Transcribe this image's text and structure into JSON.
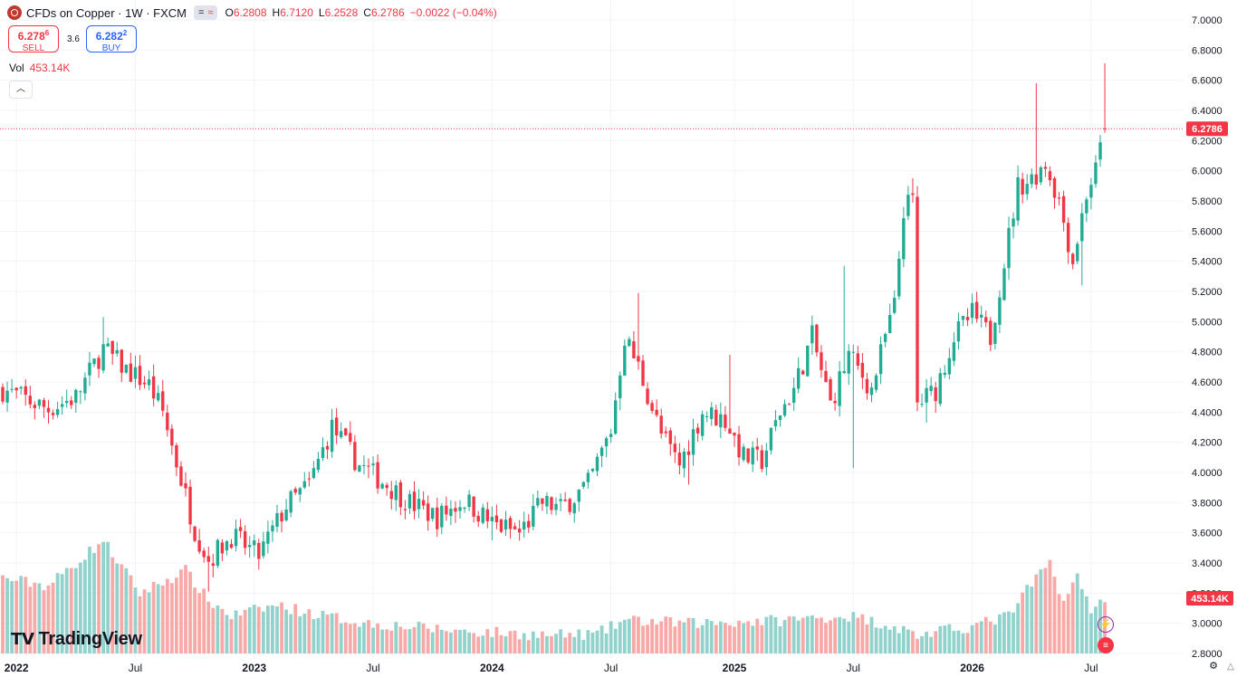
{
  "header": {
    "title": "CFDs on Copper · 1W · FXCM",
    "badge_icon": "equals-icon",
    "badge_icon2": "approx-icon",
    "open": "6.2808",
    "high": "6.7120",
    "low": "6.2528",
    "close": "6.2786",
    "change": "−0.0022 (−0.04%)"
  },
  "trade": {
    "sell_price": "6.278",
    "sell_sup": "6",
    "sell_label": "SELL",
    "spread": "3.6",
    "buy_price": "6.282",
    "buy_sup": "2",
    "buy_label": "BUY"
  },
  "volume": {
    "label": "Vol",
    "value": "453.14K"
  },
  "logo": {
    "text": "TradingView"
  },
  "colors": {
    "up": "#22ab94",
    "down": "#f23645",
    "up_vol": "#92d2cc",
    "down_vol": "#f7a9a7",
    "grid": "#f0f3fa"
  },
  "chart_data": {
    "type": "candlestick",
    "interval": "1W",
    "price_axis": {
      "ticks": [
        "2.8000",
        "3.0000",
        "3.2000",
        "3.4000",
        "3.6000",
        "3.8000",
        "4.0000",
        "4.2000",
        "4.4000",
        "4.6000",
        "4.8000",
        "5.0000",
        "5.2000",
        "5.4000",
        "5.6000",
        "5.8000",
        "6.0000",
        "6.2000",
        "6.4000",
        "6.6000",
        "6.8000",
        "7.0000"
      ],
      "range": [
        2.72,
        7.06
      ],
      "last_price_label": "6.2786",
      "last_price": 6.2786
    },
    "time_axis": {
      "labels": [
        "2022",
        "Jul",
        "2023",
        "Jul",
        "2024",
        "Jul",
        "2025",
        "Jul",
        "2026",
        "Jul"
      ]
    },
    "volume_label": "453.14K",
    "anchors": [
      [
        0,
        4.55
      ],
      [
        10,
        4.42
      ],
      [
        16,
        4.5
      ],
      [
        22,
        4.82
      ],
      [
        27,
        4.68
      ],
      [
        32,
        4.58
      ],
      [
        35,
        4.4
      ],
      [
        42,
        3.62
      ],
      [
        45,
        3.42
      ],
      [
        50,
        3.58
      ],
      [
        56,
        3.45
      ],
      [
        62,
        3.78
      ],
      [
        67,
        3.92
      ],
      [
        72,
        4.3
      ],
      [
        78,
        4.05
      ],
      [
        84,
        3.92
      ],
      [
        89,
        3.8
      ],
      [
        95,
        3.7
      ],
      [
        101,
        3.82
      ],
      [
        107,
        3.66
      ],
      [
        113,
        3.6
      ],
      [
        118,
        3.8
      ],
      [
        122,
        3.76
      ],
      [
        128,
        3.92
      ],
      [
        133,
        4.28
      ],
      [
        136,
        4.9
      ],
      [
        139,
        4.7
      ],
      [
        144,
        4.25
      ],
      [
        148,
        4.05
      ],
      [
        153,
        4.4
      ],
      [
        158,
        4.35
      ],
      [
        162,
        4.1
      ],
      [
        166,
        4.08
      ],
      [
        170,
        4.4
      ],
      [
        173,
        4.55
      ],
      [
        177,
        4.9
      ],
      [
        181,
        4.45
      ],
      [
        185,
        4.78
      ],
      [
        190,
        4.55
      ],
      [
        193,
        4.9
      ],
      [
        195,
        5.1
      ],
      [
        197,
        5.75
      ],
      [
        199,
        5.8
      ],
      [
        200,
        4.45
      ],
      [
        204,
        4.55
      ],
      [
        208,
        4.9
      ],
      [
        212,
        5.05
      ],
      [
        216,
        4.9
      ],
      [
        219,
        5.4
      ],
      [
        222,
        5.9
      ],
      [
        225,
        5.95
      ],
      [
        228,
        6.05
      ],
      [
        231,
        5.8
      ],
      [
        234,
        5.4
      ],
      [
        237,
        5.85
      ],
      [
        239,
        6.0
      ],
      [
        241,
        6.2786
      ]
    ],
    "volume_profile": [
      [
        0,
        3.3
      ],
      [
        10,
        3.25
      ],
      [
        16,
        3.4
      ],
      [
        22,
        3.55
      ],
      [
        30,
        3.2
      ],
      [
        40,
        3.35
      ],
      [
        45,
        3.15
      ],
      [
        50,
        3.05
      ],
      [
        60,
        3.12
      ],
      [
        70,
        3.05
      ],
      [
        80,
        3.0
      ],
      [
        100,
        2.95
      ],
      [
        120,
        2.92
      ],
      [
        130,
        2.93
      ],
      [
        136,
        3.02
      ],
      [
        150,
        3.0
      ],
      [
        170,
        3.02
      ],
      [
        185,
        3.05
      ],
      [
        195,
        2.98
      ],
      [
        200,
        2.92
      ],
      [
        212,
        2.98
      ],
      [
        220,
        3.05
      ],
      [
        226,
        3.3
      ],
      [
        229,
        3.4
      ],
      [
        232,
        3.15
      ],
      [
        235,
        3.3
      ],
      [
        238,
        3.1
      ],
      [
        241,
        3.15
      ]
    ],
    "peaks": [
      {
        "i": 22,
        "high": 5.03
      },
      {
        "i": 139,
        "high": 5.19
      },
      {
        "i": 159,
        "high": 4.78
      },
      {
        "i": 184,
        "high": 5.37
      },
      {
        "i": 199,
        "high": 5.95
      },
      {
        "i": 226,
        "high": 6.58
      },
      {
        "i": 241,
        "high": 6.712
      }
    ],
    "troughs": [
      {
        "i": 45,
        "low": 3.21
      },
      {
        "i": 107,
        "low": 3.55
      },
      {
        "i": 150,
        "low": 3.92
      },
      {
        "i": 186,
        "low": 4.03
      },
      {
        "i": 202,
        "low": 4.33
      },
      {
        "i": 236,
        "low": 5.24
      }
    ]
  }
}
